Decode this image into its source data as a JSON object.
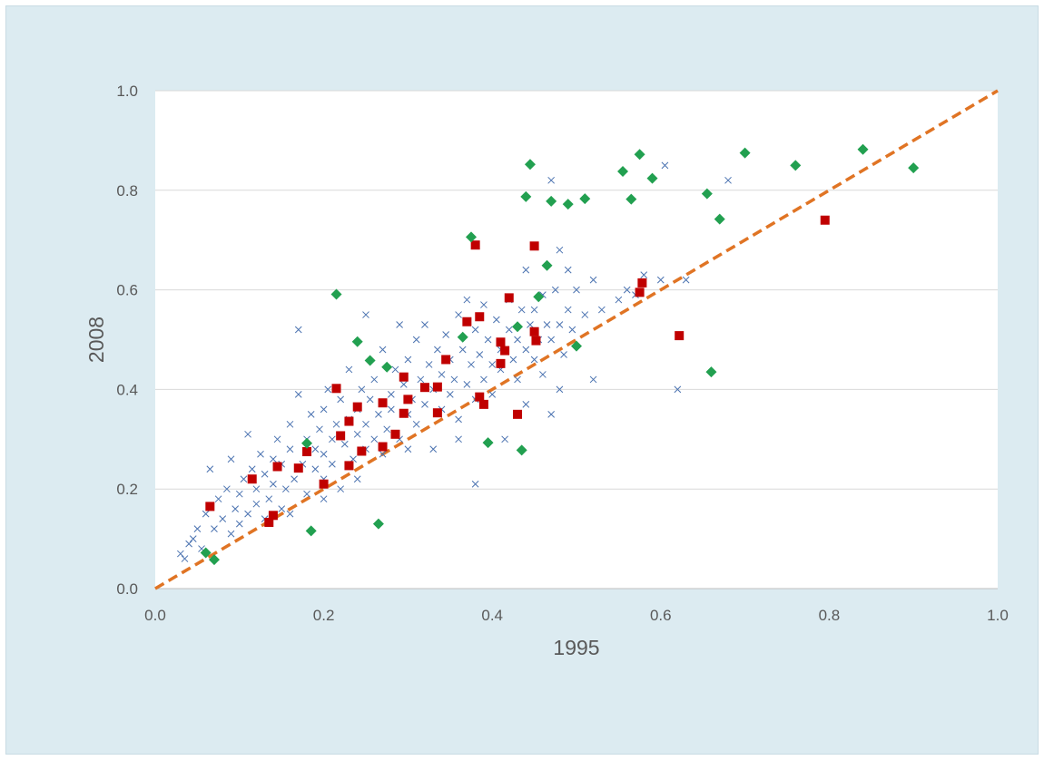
{
  "chart_data": {
    "type": "scatter",
    "xlabel": "1995",
    "ylabel": "2008",
    "xlim": [
      0,
      1
    ],
    "ylim": [
      0,
      1
    ],
    "x_ticks": [
      "0.0",
      "0.2",
      "0.4",
      "0.6",
      "0.8",
      "1.0"
    ],
    "y_ticks": [
      "0.0",
      "0.2",
      "0.4",
      "0.6",
      "0.8",
      "1.0"
    ],
    "grid": "horizontal",
    "legend": "none",
    "reference_line": {
      "from": [
        0,
        0
      ],
      "to": [
        1,
        1
      ],
      "style": "dashed",
      "color": "#e07424"
    },
    "series": [
      {
        "marker": "x",
        "color": "#4a72b0",
        "points": [
          [
            0.03,
            0.07
          ],
          [
            0.035,
            0.06
          ],
          [
            0.04,
            0.09
          ],
          [
            0.045,
            0.1
          ],
          [
            0.05,
            0.12
          ],
          [
            0.055,
            0.08
          ],
          [
            0.06,
            0.15
          ],
          [
            0.065,
            0.24
          ],
          [
            0.07,
            0.12
          ],
          [
            0.075,
            0.18
          ],
          [
            0.08,
            0.14
          ],
          [
            0.085,
            0.2
          ],
          [
            0.09,
            0.11
          ],
          [
            0.09,
            0.26
          ],
          [
            0.095,
            0.16
          ],
          [
            0.1,
            0.13
          ],
          [
            0.1,
            0.19
          ],
          [
            0.105,
            0.22
          ],
          [
            0.11,
            0.15
          ],
          [
            0.11,
            0.31
          ],
          [
            0.115,
            0.24
          ],
          [
            0.12,
            0.17
          ],
          [
            0.12,
            0.2
          ],
          [
            0.125,
            0.27
          ],
          [
            0.13,
            0.14
          ],
          [
            0.13,
            0.23
          ],
          [
            0.135,
            0.18
          ],
          [
            0.14,
            0.26
          ],
          [
            0.14,
            0.21
          ],
          [
            0.145,
            0.3
          ],
          [
            0.15,
            0.16
          ],
          [
            0.15,
            0.25
          ],
          [
            0.155,
            0.2
          ],
          [
            0.16,
            0.28
          ],
          [
            0.16,
            0.33
          ],
          [
            0.165,
            0.22
          ],
          [
            0.17,
            0.39
          ],
          [
            0.17,
            0.52
          ],
          [
            0.175,
            0.25
          ],
          [
            0.18,
            0.19
          ],
          [
            0.18,
            0.3
          ],
          [
            0.185,
            0.35
          ],
          [
            0.19,
            0.24
          ],
          [
            0.19,
            0.28
          ],
          [
            0.195,
            0.32
          ],
          [
            0.2,
            0.22
          ],
          [
            0.2,
            0.36
          ],
          [
            0.2,
            0.27
          ],
          [
            0.205,
            0.4
          ],
          [
            0.21,
            0.3
          ],
          [
            0.21,
            0.25
          ],
          [
            0.215,
            0.33
          ],
          [
            0.22,
            0.2
          ],
          [
            0.22,
            0.38
          ],
          [
            0.225,
            0.29
          ],
          [
            0.23,
            0.34
          ],
          [
            0.23,
            0.44
          ],
          [
            0.235,
            0.26
          ],
          [
            0.24,
            0.31
          ],
          [
            0.24,
            0.36
          ],
          [
            0.245,
            0.4
          ],
          [
            0.25,
            0.28
          ],
          [
            0.25,
            0.33
          ],
          [
            0.25,
            0.55
          ],
          [
            0.255,
            0.38
          ],
          [
            0.26,
            0.3
          ],
          [
            0.26,
            0.42
          ],
          [
            0.265,
            0.35
          ],
          [
            0.27,
            0.27
          ],
          [
            0.27,
            0.48
          ],
          [
            0.275,
            0.32
          ],
          [
            0.28,
            0.39
          ],
          [
            0.28,
            0.36
          ],
          [
            0.285,
            0.44
          ],
          [
            0.29,
            0.3
          ],
          [
            0.29,
            0.53
          ],
          [
            0.295,
            0.41
          ],
          [
            0.3,
            0.35
          ],
          [
            0.3,
            0.46
          ],
          [
            0.305,
            0.38
          ],
          [
            0.31,
            0.33
          ],
          [
            0.31,
            0.5
          ],
          [
            0.315,
            0.42
          ],
          [
            0.32,
            0.37
          ],
          [
            0.32,
            0.53
          ],
          [
            0.325,
            0.45
          ],
          [
            0.33,
            0.4
          ],
          [
            0.33,
            0.28
          ],
          [
            0.335,
            0.48
          ],
          [
            0.34,
            0.36
          ],
          [
            0.34,
            0.43
          ],
          [
            0.345,
            0.51
          ],
          [
            0.35,
            0.39
          ],
          [
            0.35,
            0.46
          ],
          [
            0.355,
            0.42
          ],
          [
            0.36,
            0.55
          ],
          [
            0.36,
            0.34
          ],
          [
            0.365,
            0.48
          ],
          [
            0.37,
            0.41
          ],
          [
            0.37,
            0.58
          ],
          [
            0.375,
            0.45
          ],
          [
            0.38,
            0.38
          ],
          [
            0.38,
            0.52
          ],
          [
            0.38,
            0.21
          ],
          [
            0.385,
            0.47
          ],
          [
            0.39,
            0.42
          ],
          [
            0.39,
            0.57
          ],
          [
            0.395,
            0.5
          ],
          [
            0.4,
            0.45
          ],
          [
            0.4,
            0.39
          ],
          [
            0.405,
            0.54
          ],
          [
            0.41,
            0.48
          ],
          [
            0.41,
            0.44
          ],
          [
            0.415,
            0.3
          ],
          [
            0.42,
            0.52
          ],
          [
            0.42,
            0.58
          ],
          [
            0.425,
            0.46
          ],
          [
            0.43,
            0.5
          ],
          [
            0.43,
            0.42
          ],
          [
            0.435,
            0.56
          ],
          [
            0.44,
            0.48
          ],
          [
            0.44,
            0.64
          ],
          [
            0.445,
            0.53
          ],
          [
            0.45,
            0.46
          ],
          [
            0.45,
            0.56
          ],
          [
            0.455,
            0.5
          ],
          [
            0.46,
            0.59
          ],
          [
            0.46,
            0.43
          ],
          [
            0.465,
            0.53
          ],
          [
            0.47,
            0.5
          ],
          [
            0.47,
            0.82
          ],
          [
            0.475,
            0.6
          ],
          [
            0.48,
            0.53
          ],
          [
            0.48,
            0.68
          ],
          [
            0.485,
            0.47
          ],
          [
            0.49,
            0.56
          ],
          [
            0.49,
            0.64
          ],
          [
            0.495,
            0.52
          ],
          [
            0.5,
            0.6
          ],
          [
            0.51,
            0.55
          ],
          [
            0.52,
            0.62
          ],
          [
            0.52,
            0.42
          ],
          [
            0.53,
            0.56
          ],
          [
            0.55,
            0.58
          ],
          [
            0.56,
            0.6
          ],
          [
            0.57,
            0.59
          ],
          [
            0.58,
            0.63
          ],
          [
            0.6,
            0.62
          ],
          [
            0.605,
            0.85
          ],
          [
            0.62,
            0.4
          ],
          [
            0.63,
            0.62
          ],
          [
            0.68,
            0.82
          ],
          [
            0.47,
            0.35
          ],
          [
            0.48,
            0.4
          ],
          [
            0.44,
            0.37
          ],
          [
            0.36,
            0.3
          ],
          [
            0.3,
            0.28
          ],
          [
            0.24,
            0.22
          ],
          [
            0.2,
            0.18
          ],
          [
            0.16,
            0.15
          ]
        ]
      },
      {
        "marker": "square",
        "color": "#c00000",
        "points": [
          [
            0.065,
            0.165
          ],
          [
            0.115,
            0.22
          ],
          [
            0.135,
            0.133
          ],
          [
            0.14,
            0.147
          ],
          [
            0.145,
            0.245
          ],
          [
            0.17,
            0.242
          ],
          [
            0.18,
            0.275
          ],
          [
            0.2,
            0.21
          ],
          [
            0.215,
            0.402
          ],
          [
            0.22,
            0.307
          ],
          [
            0.23,
            0.247
          ],
          [
            0.23,
            0.336
          ],
          [
            0.24,
            0.365
          ],
          [
            0.245,
            0.276
          ],
          [
            0.27,
            0.285
          ],
          [
            0.27,
            0.373
          ],
          [
            0.285,
            0.31
          ],
          [
            0.295,
            0.425
          ],
          [
            0.295,
            0.352
          ],
          [
            0.3,
            0.38
          ],
          [
            0.32,
            0.404
          ],
          [
            0.335,
            0.353
          ],
          [
            0.335,
            0.405
          ],
          [
            0.345,
            0.46
          ],
          [
            0.37,
            0.536
          ],
          [
            0.38,
            0.69
          ],
          [
            0.385,
            0.385
          ],
          [
            0.385,
            0.546
          ],
          [
            0.39,
            0.37
          ],
          [
            0.41,
            0.452
          ],
          [
            0.41,
            0.495
          ],
          [
            0.415,
            0.478
          ],
          [
            0.42,
            0.584
          ],
          [
            0.43,
            0.35
          ],
          [
            0.45,
            0.688
          ],
          [
            0.45,
            0.516
          ],
          [
            0.452,
            0.498
          ],
          [
            0.575,
            0.595
          ],
          [
            0.578,
            0.614
          ],
          [
            0.622,
            0.508
          ],
          [
            0.795,
            0.74
          ]
        ]
      },
      {
        "marker": "diamond",
        "color": "#22a050",
        "points": [
          [
            0.06,
            0.072
          ],
          [
            0.07,
            0.058
          ],
          [
            0.18,
            0.292
          ],
          [
            0.185,
            0.116
          ],
          [
            0.215,
            0.591
          ],
          [
            0.24,
            0.496
          ],
          [
            0.255,
            0.458
          ],
          [
            0.265,
            0.13
          ],
          [
            0.275,
            0.445
          ],
          [
            0.365,
            0.505
          ],
          [
            0.375,
            0.706
          ],
          [
            0.395,
            0.293
          ],
          [
            0.43,
            0.526
          ],
          [
            0.435,
            0.278
          ],
          [
            0.44,
            0.787
          ],
          [
            0.445,
            0.852
          ],
          [
            0.455,
            0.586
          ],
          [
            0.465,
            0.649
          ],
          [
            0.47,
            0.778
          ],
          [
            0.49,
            0.772
          ],
          [
            0.5,
            0.487
          ],
          [
            0.51,
            0.783
          ],
          [
            0.555,
            0.838
          ],
          [
            0.565,
            0.782
          ],
          [
            0.575,
            0.872
          ],
          [
            0.59,
            0.824
          ],
          [
            0.655,
            0.793
          ],
          [
            0.66,
            0.435
          ],
          [
            0.67,
            0.742
          ],
          [
            0.7,
            0.875
          ],
          [
            0.76,
            0.85
          ],
          [
            0.84,
            0.882
          ],
          [
            0.9,
            0.845
          ]
        ]
      }
    ]
  }
}
